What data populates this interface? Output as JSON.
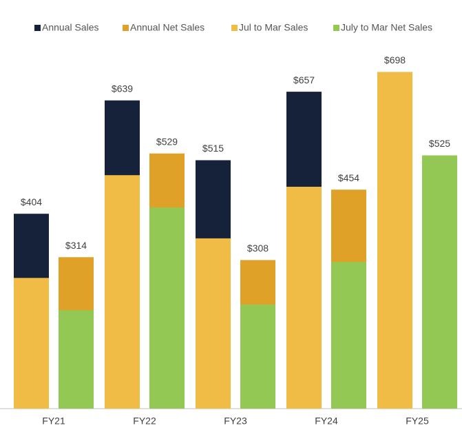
{
  "chart_data": {
    "type": "bar",
    "categories": [
      "FY21",
      "FY22",
      "FY23",
      "FY24",
      "FY25"
    ],
    "series": [
      {
        "name": "Annual Sales",
        "color": "#16213a",
        "values": [
          404,
          639,
          515,
          657,
          null
        ],
        "value_labels": [
          "$404",
          "$639",
          "$515",
          "$657",
          null
        ]
      },
      {
        "name": "Annual Net Sales",
        "color": "#dfa127",
        "values": [
          314,
          529,
          308,
          454,
          null
        ],
        "value_labels": [
          "$314",
          "$529",
          "$308",
          "$454",
          null
        ]
      },
      {
        "name": "Jul to Mar Sales",
        "color": "#f0bc45",
        "values": [
          271,
          484,
          353,
          460,
          698
        ],
        "value_labels": [
          null,
          null,
          null,
          null,
          "$698"
        ]
      },
      {
        "name": "July to Mar Net Sales",
        "color": "#92c853",
        "values": [
          204,
          417,
          216,
          304,
          525
        ],
        "value_labels": [
          null,
          null,
          null,
          null,
          "$525"
        ]
      }
    ],
    "ylim": [
      0,
      700
    ]
  }
}
